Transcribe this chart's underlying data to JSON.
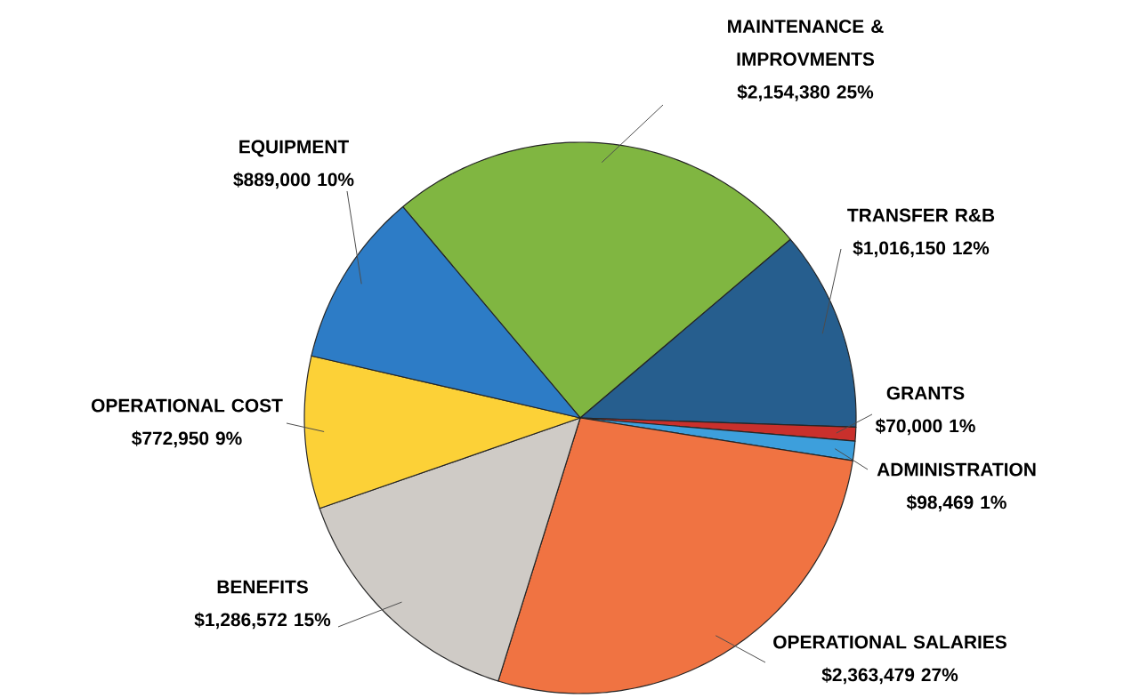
{
  "chart_data": {
    "type": "pie",
    "categories": [
      "MAINTENANCE & IMPROVMENTS",
      "TRANSFER R&B",
      "GRANTS",
      "ADMINISTRATION",
      "OPERATIONAL SALARIES",
      "BENEFITS",
      "OPERATIONAL COST",
      "EQUIPMENT"
    ],
    "values": [
      2154380,
      1016150,
      70000,
      98469,
      2363479,
      1286572,
      772950,
      889000
    ],
    "value_labels": [
      "$2,154,380  25%",
      "$1,016,150  12%",
      "$70,000  1%",
      "$98,469  1%",
      "$2,363,479  27%",
      "$1,286,572  15%",
      "$772,950  9%",
      "$889,000  10%"
    ],
    "colors": [
      "#80b641",
      "#265e8e",
      "#c9302c",
      "#3d9fdc",
      "#f07342",
      "#cfcbc6",
      "#fcd137",
      "#2d7cc6"
    ]
  }
}
